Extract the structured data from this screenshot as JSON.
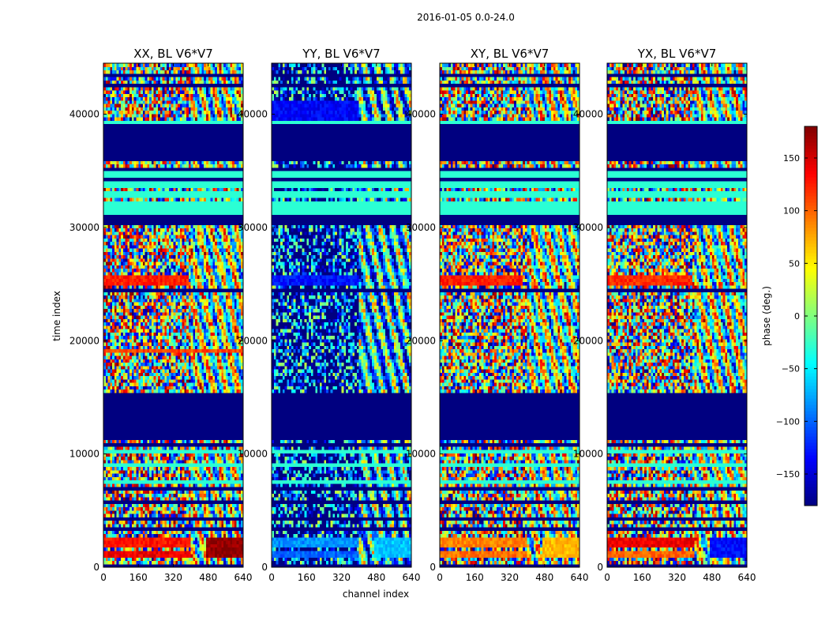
{
  "figure": {
    "suptitle": "2016-01-05 0.0-24.0"
  },
  "chart_data": {
    "type": "heatmap",
    "title": "2016-01-05 0.0-24.0",
    "xlabel": "channel index",
    "ylabel": "time index",
    "x_range": [
      0,
      640
    ],
    "y_range": [
      0,
      44500
    ],
    "x_ticks": [
      "0",
      "160",
      "320",
      "480",
      "640"
    ],
    "y_ticks": [
      "0",
      "10000",
      "20000",
      "30000",
      "40000"
    ],
    "colormap": "jet",
    "colorbar": {
      "label": "phase (deg.)",
      "range": [
        -180,
        180
      ],
      "ticks": [
        "150",
        "100",
        "50",
        "0",
        "−50",
        "−100",
        "−150"
      ],
      "tick_values": [
        150,
        100,
        50,
        0,
        -50,
        -100,
        -150
      ]
    },
    "masked_value": -180,
    "flagged_value": -30,
    "panels": [
      {
        "name": "XX, BL V6*V7",
        "seed": 11,
        "noise_base": 0,
        "features": [
          {
            "y0": 850,
            "y1": 1500,
            "x0": 0,
            "x1": 400,
            "value": 140
          },
          {
            "y0": 1800,
            "y1": 2600,
            "x0": 0,
            "x1": 400,
            "value": 130
          },
          {
            "y0": 900,
            "y1": 2600,
            "x0": 470,
            "x1": 640,
            "value": 175
          },
          {
            "y0": 24900,
            "y1": 25900,
            "x0": 0,
            "x1": 390,
            "value": 125
          },
          {
            "y0": 19000,
            "y1": 19300,
            "x0": 0,
            "x1": 640,
            "value": 110
          }
        ]
      },
      {
        "name": "YY, BL V6*V7",
        "seed": 23,
        "noise_base": -150,
        "features": [
          {
            "y0": 850,
            "y1": 1500,
            "x0": 0,
            "x1": 400,
            "value": -100
          },
          {
            "y0": 1800,
            "y1": 2600,
            "x0": 0,
            "x1": 400,
            "value": -85
          },
          {
            "y0": 900,
            "y1": 2600,
            "x0": 470,
            "x1": 640,
            "value": -65
          },
          {
            "y0": 24900,
            "y1": 25900,
            "x0": 0,
            "x1": 400,
            "value": -130
          },
          {
            "y0": 38900,
            "y1": 41200,
            "x0": 0,
            "x1": 400,
            "value": -135
          }
        ]
      },
      {
        "name": "XY, BL V6*V7",
        "seed": 37,
        "noise_base": 0,
        "features": [
          {
            "y0": 850,
            "y1": 1500,
            "x0": 0,
            "x1": 400,
            "value": 95
          },
          {
            "y0": 1800,
            "y1": 2600,
            "x0": 0,
            "x1": 400,
            "value": 88
          },
          {
            "y0": 900,
            "y1": 2600,
            "x0": 470,
            "x1": 640,
            "value": 70
          },
          {
            "y0": 24900,
            "y1": 25900,
            "x0": 0,
            "x1": 380,
            "value": 125
          }
        ]
      },
      {
        "name": "YX, BL V6*V7",
        "seed": 53,
        "noise_base": 0,
        "features": [
          {
            "y0": 850,
            "y1": 1500,
            "x0": 0,
            "x1": 400,
            "value": 100
          },
          {
            "y0": 1800,
            "y1": 2600,
            "x0": 0,
            "x1": 400,
            "value": 140
          },
          {
            "y0": 900,
            "y1": 2600,
            "x0": 470,
            "x1": 640,
            "value": -130
          },
          {
            "y0": 24900,
            "y1": 25900,
            "x0": 0,
            "x1": 390,
            "value": 120
          }
        ]
      }
    ],
    "masked_blocks": [
      [
        0,
        150
      ],
      [
        500,
        650
      ],
      [
        3300,
        3500
      ],
      [
        4300,
        4450
      ],
      [
        5700,
        5850
      ],
      [
        6700,
        7200
      ],
      [
        8300,
        8450
      ],
      [
        9400,
        9550
      ],
      [
        10700,
        10850
      ],
      [
        11400,
        15300
      ],
      [
        24200,
        24700
      ],
      [
        30400,
        31100
      ],
      [
        34100,
        34300
      ],
      [
        35100,
        35300
      ],
      [
        36000,
        39200
      ],
      [
        42500,
        42750
      ],
      [
        43300,
        43500
      ],
      [
        44100,
        44250
      ]
    ],
    "flagged_blocks": [
      [
        7500,
        7800
      ],
      [
        9000,
        9250
      ],
      [
        10100,
        10350
      ],
      [
        31100,
        32300
      ],
      [
        32600,
        33200
      ],
      [
        33500,
        34100
      ],
      [
        34300,
        35100
      ],
      [
        39200,
        39400
      ]
    ]
  }
}
